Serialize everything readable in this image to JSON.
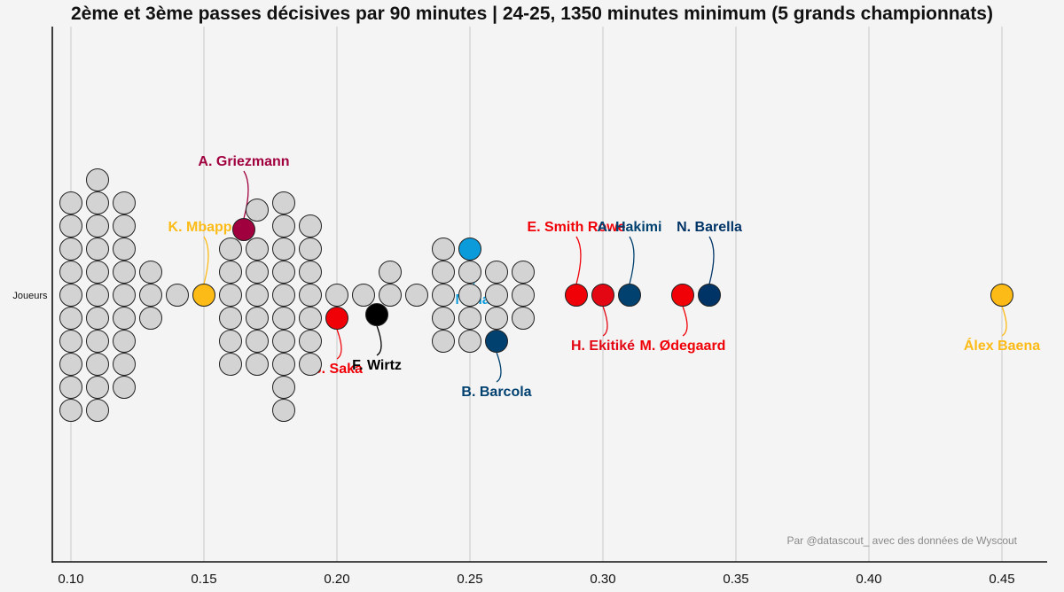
{
  "chart_data": {
    "type": "scatter",
    "subtype": "beeswarm",
    "title": "2ème et 3ème passes décisives par 90 minutes | 24-25, 1350 minutes minimum (5 grands championnats)",
    "ylabel": "Joueurs",
    "xlim": [
      0.093,
      0.467
    ],
    "xticks": [
      "0.10",
      "0.15",
      "0.20",
      "0.25",
      "0.30",
      "0.35",
      "0.40",
      "0.45"
    ],
    "grid": "vertical",
    "credit": "Par @datascout_ avec des données de Wyscout",
    "colors": {
      "other": "#d3d3d3",
      "background": "#f4f4f4"
    },
    "highlighted": [
      {
        "name": "K. Mbappé",
        "x": 0.15,
        "color": "#fcbb16"
      },
      {
        "name": "A. Griezmann",
        "x": 0.165,
        "color": "#a1003f"
      },
      {
        "name": "B. Saka",
        "x": 0.2,
        "color": "#ef0107"
      },
      {
        "name": "F. Wirtz",
        "x": 0.215,
        "color": "#000000"
      },
      {
        "name": "S. Nanasi",
        "x": 0.25,
        "color": "#0b9bdb"
      },
      {
        "name": "B. Barcola",
        "x": 0.26,
        "color": "#004170"
      },
      {
        "name": "E. Smith Rowe",
        "x": 0.29,
        "color": "#ef0107"
      },
      {
        "name": "H. Ekitiké",
        "x": 0.3,
        "color": "#e30613"
      },
      {
        "name": "A. Hakimi",
        "x": 0.31,
        "color": "#004170"
      },
      {
        "name": "M. Ødegaard",
        "x": 0.33,
        "color": "#ef0107"
      },
      {
        "name": "N. Barella",
        "x": 0.34,
        "color": "#003366"
      },
      {
        "name": "Álex Baena",
        "x": 0.45,
        "color": "#fcbb16"
      }
    ],
    "others": [
      0.1,
      0.1,
      0.1,
      0.1,
      0.1,
      0.1,
      0.1,
      0.1,
      0.1,
      0.1,
      0.11,
      0.11,
      0.11,
      0.11,
      0.11,
      0.11,
      0.11,
      0.11,
      0.11,
      0.11,
      0.11,
      0.12,
      0.12,
      0.12,
      0.12,
      0.12,
      0.12,
      0.12,
      0.12,
      0.12,
      0.13,
      0.13,
      0.13,
      0.14,
      0.16,
      0.16,
      0.16,
      0.16,
      0.16,
      0.16,
      0.17,
      0.17,
      0.17,
      0.17,
      0.17,
      0.17,
      0.17,
      0.18,
      0.18,
      0.18,
      0.18,
      0.18,
      0.18,
      0.18,
      0.18,
      0.18,
      0.18,
      0.19,
      0.19,
      0.19,
      0.19,
      0.19,
      0.19,
      0.19,
      0.2,
      0.21,
      0.22,
      0.22,
      0.23,
      0.24,
      0.24,
      0.24,
      0.24,
      0.24,
      0.25,
      0.25,
      0.25,
      0.25,
      0.26,
      0.26,
      0.26,
      0.27,
      0.27,
      0.27
    ]
  }
}
